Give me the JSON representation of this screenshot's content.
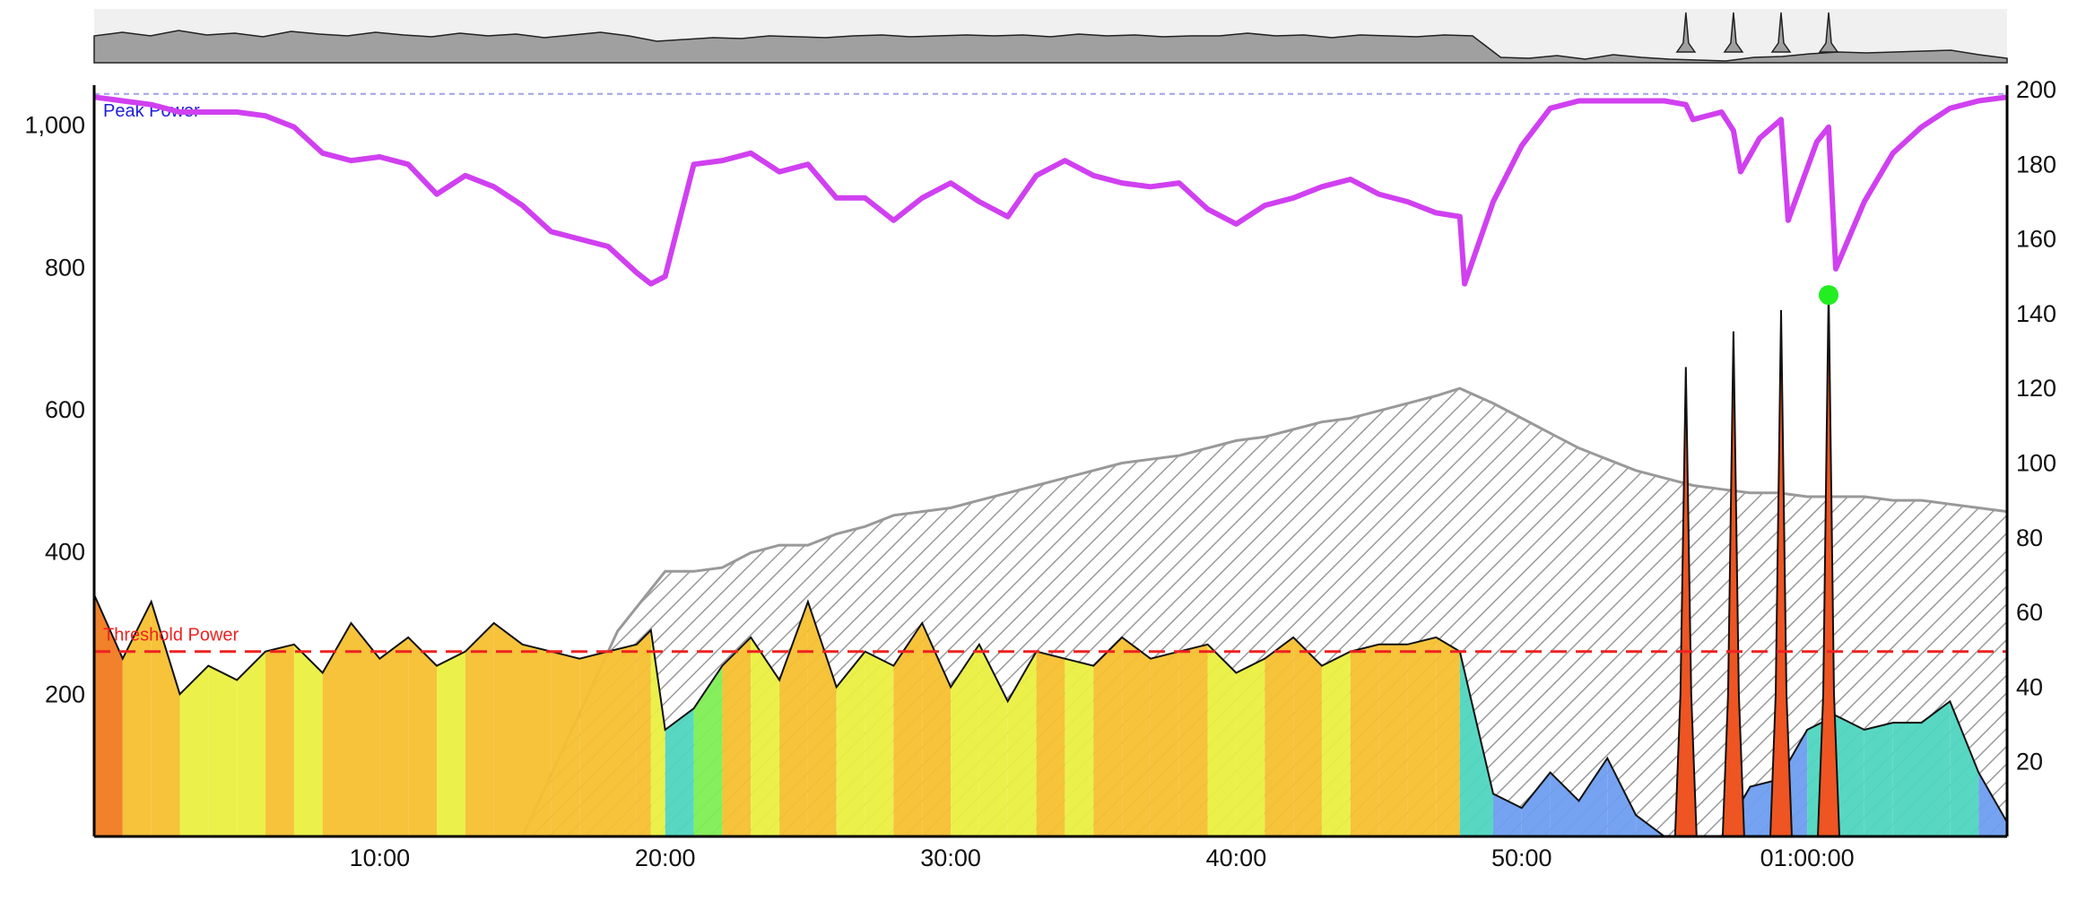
{
  "chart_data": {
    "type": "area",
    "xaxis": {
      "min": 0,
      "max": 4020,
      "tick_values": [
        600,
        1200,
        1800,
        2400,
        3000,
        3600
      ],
      "tick_labels": [
        "10:00",
        "20:00",
        "30:00",
        "40:00",
        "50:00",
        "01:00:00"
      ]
    },
    "yaxis_left": {
      "min": 0,
      "max": 1050,
      "ticks": [
        200,
        400,
        600,
        800,
        1000
      ],
      "tick_labels": [
        "200",
        "400",
        "600",
        "800",
        "1,000"
      ]
    },
    "yaxis_right": {
      "min": 0,
      "max": 200,
      "ticks": [
        20,
        40,
        60,
        80,
        100,
        120,
        140,
        160,
        180,
        200
      ],
      "tick_labels": [
        "20",
        "40",
        "60",
        "80",
        "100",
        "120",
        "140",
        "160",
        "180",
        "200"
      ]
    },
    "reference_lines": [
      {
        "label": "Peak Power",
        "value": 1044,
        "color": "#9ea3e8",
        "label_color": "#1f1fd6"
      },
      {
        "label": "Threshold Power",
        "value": 260,
        "color": "#ee2222",
        "label_color": "#ee2222"
      }
    ],
    "grid": false,
    "series": [
      {
        "role": "power",
        "axis": "left",
        "x": [
          0,
          60,
          120,
          180,
          240,
          300,
          360,
          420,
          480,
          540,
          600,
          660,
          720,
          780,
          840,
          900,
          960,
          1020,
          1080,
          1140,
          1170,
          1200,
          1260,
          1320,
          1380,
          1440,
          1500,
          1560,
          1620,
          1680,
          1740,
          1800,
          1860,
          1920,
          1980,
          2040,
          2100,
          2160,
          2220,
          2280,
          2340,
          2400,
          2460,
          2520,
          2580,
          2640,
          2700,
          2760,
          2820,
          2870,
          2940,
          3000,
          3060,
          3120,
          3180,
          3240,
          3300,
          3360,
          3420,
          3480,
          3540,
          3600,
          3660,
          3720,
          3780,
          3840,
          3900,
          3960,
          4020
        ],
        "y": [
          340,
          250,
          330,
          200,
          240,
          220,
          260,
          270,
          230,
          300,
          250,
          280,
          240,
          260,
          300,
          270,
          260,
          250,
          260,
          270,
          290,
          150,
          180,
          240,
          280,
          220,
          330,
          210,
          260,
          240,
          300,
          210,
          270,
          190,
          260,
          250,
          240,
          280,
          250,
          260,
          270,
          230,
          250,
          280,
          240,
          260,
          270,
          270,
          280,
          260,
          60,
          40,
          90,
          50,
          110,
          30,
          0,
          0,
          0,
          70,
          80,
          150,
          170,
          150,
          160,
          160,
          190,
          90,
          20
        ],
        "color_scale": [
          "#6e9ef0",
          "#4fd6c0",
          "#7fee55",
          "#eaf040",
          "#f5c030",
          "#f07a20",
          "#e8401a"
        ]
      },
      {
        "role": "power_spikes",
        "axis": "left",
        "x": [
          3345,
          3445,
          3545,
          3645
        ],
        "y": [
          660,
          710,
          740,
          770
        ],
        "color": "#ee5522"
      },
      {
        "role": "fatigue",
        "axis": "right",
        "x": [
          0,
          900,
          1100,
          1200,
          1260,
          1320,
          1380,
          1440,
          1500,
          1560,
          1620,
          1680,
          1740,
          1800,
          1860,
          1920,
          1980,
          2040,
          2100,
          2160,
          2220,
          2280,
          2340,
          2400,
          2460,
          2520,
          2580,
          2640,
          2700,
          2760,
          2820,
          2870,
          2940,
          3000,
          3060,
          3120,
          3180,
          3240,
          3300,
          3360,
          3420,
          3480,
          3540,
          3600,
          3660,
          3720,
          3780,
          3840,
          3900,
          3960,
          4020
        ],
        "y": [
          0,
          0,
          55,
          71,
          71,
          72,
          76,
          78,
          78,
          81,
          83,
          86,
          87,
          88,
          90,
          92,
          94,
          96,
          98,
          100,
          101,
          102,
          104,
          106,
          107,
          109,
          111,
          112,
          114,
          116,
          118,
          120,
          116,
          112,
          108,
          104,
          101,
          98,
          96,
          94,
          93,
          92,
          92,
          91,
          91,
          91,
          90,
          90,
          89,
          88,
          87
        ],
        "fill": "hatched",
        "color": "#999999"
      },
      {
        "role": "w_prime_balance",
        "axis": "right",
        "x": [
          0,
          60,
          120,
          180,
          240,
          300,
          360,
          420,
          480,
          540,
          600,
          660,
          720,
          780,
          840,
          900,
          960,
          1020,
          1080,
          1140,
          1170,
          1200,
          1230,
          1260,
          1320,
          1380,
          1440,
          1500,
          1560,
          1620,
          1680,
          1740,
          1800,
          1860,
          1920,
          1980,
          2040,
          2100,
          2160,
          2220,
          2280,
          2340,
          2400,
          2460,
          2520,
          2580,
          2640,
          2700,
          2760,
          2820,
          2870,
          2880,
          2940,
          3000,
          3060,
          3120,
          3180,
          3240,
          3300,
          3345,
          3360,
          3420,
          3445,
          3460,
          3500,
          3545,
          3560,
          3620,
          3645,
          3660,
          3720,
          3780,
          3840,
          3900,
          3960,
          4020
        ],
        "y": [
          198,
          197,
          196,
          194,
          194,
          194,
          193,
          190,
          183,
          181,
          182,
          180,
          172,
          177,
          174,
          169,
          162,
          160,
          158,
          151,
          148,
          150,
          165,
          180,
          181,
          183,
          178,
          180,
          171,
          171,
          165,
          171,
          175,
          170,
          166,
          177,
          181,
          177,
          175,
          174,
          175,
          168,
          164,
          169,
          171,
          174,
          176,
          172,
          170,
          167,
          166,
          148,
          170,
          185,
          195,
          197,
          197,
          197,
          197,
          196,
          192,
          194,
          189,
          178,
          187,
          192,
          165,
          186,
          190,
          152,
          170,
          183,
          190,
          195,
          197,
          198
        ],
        "color": "#d040f0"
      }
    ],
    "highlight_point": {
      "x": 3645,
      "y": 145,
      "axis": "right",
      "color": "#22ee22"
    }
  },
  "overview": {
    "power_profile": [
      30,
      34,
      30,
      36,
      31,
      33,
      29,
      35,
      32,
      30,
      34,
      31,
      29,
      33,
      30,
      32,
      28,
      31,
      34,
      30,
      24,
      26,
      28,
      27,
      30,
      29,
      28,
      30,
      31,
      29,
      30,
      31,
      30,
      31,
      29,
      32,
      30,
      31,
      29,
      30,
      30,
      33,
      30,
      31,
      28,
      31,
      30,
      29,
      31,
      30,
      6,
      5,
      8,
      4,
      9,
      6,
      4,
      3,
      2,
      6,
      7,
      10,
      12,
      11,
      12,
      13,
      14,
      9,
      5
    ],
    "spikes": [
      3345,
      3445,
      3545,
      3645
    ],
    "color": "#a0a0a0",
    "background": "#f0f0f0"
  }
}
